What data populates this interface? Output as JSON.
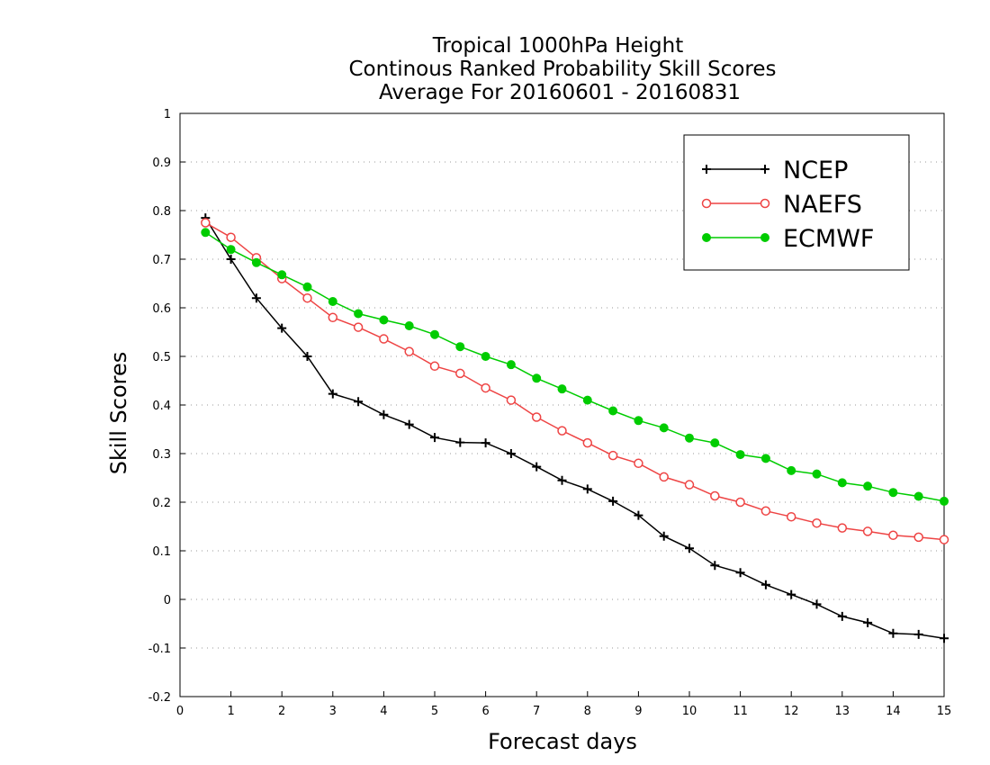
{
  "chart_data": {
    "type": "line",
    "title": [
      "Tropical 1000hPa Height",
      "Continous Ranked Probability Skill Scores",
      "Average For 20160601 - 20160831"
    ],
    "xlabel": "Forecast days",
    "ylabel": "Skill Scores",
    "xlim": [
      0,
      15
    ],
    "ylim": [
      -0.2,
      1
    ],
    "xticks": [
      0,
      1,
      2,
      3,
      4,
      5,
      6,
      7,
      8,
      9,
      10,
      11,
      12,
      13,
      14,
      15
    ],
    "xtick_labels": [
      "0",
      "1",
      "2",
      "3",
      "4",
      "5",
      "6",
      "7",
      "8",
      "9",
      "10",
      "11",
      "12",
      "13",
      "14",
      "15"
    ],
    "yticks": [
      -0.2,
      -0.1,
      0,
      0.1,
      0.2,
      0.3,
      0.4,
      0.5,
      0.6,
      0.7,
      0.8,
      0.9,
      1
    ],
    "ytick_labels": [
      "-0.2",
      "-0.1",
      "0",
      "0.1",
      "0.2",
      "0.3",
      "0.4",
      "0.5",
      "0.6",
      "0.7",
      "0.8",
      "0.9",
      "1"
    ],
    "grid": "horizontal dotted",
    "legend_position": "top-right",
    "x": [
      0.5,
      1,
      1.5,
      2,
      2.5,
      3,
      3.5,
      4,
      4.5,
      5,
      5.5,
      6,
      6.5,
      7,
      7.5,
      8,
      8.5,
      9,
      9.5,
      10,
      10.5,
      11,
      11.5,
      12,
      12.5,
      13,
      13.5,
      14,
      14.5,
      15
    ],
    "series": [
      {
        "name": "NCEP",
        "color": "#000000",
        "marker": "plus",
        "values": [
          0.785,
          0.7,
          0.62,
          0.558,
          0.5,
          0.423,
          0.407,
          0.38,
          0.36,
          0.333,
          0.323,
          0.322,
          0.3,
          0.273,
          0.245,
          0.227,
          0.202,
          0.173,
          0.13,
          0.105,
          0.07,
          0.055,
          0.03,
          0.01,
          -0.01,
          -0.035,
          -0.048,
          -0.07,
          -0.072,
          -0.08
        ]
      },
      {
        "name": "NAEFS",
        "color": "#ee4444",
        "marker": "open-circle",
        "values": [
          0.775,
          0.745,
          0.703,
          0.66,
          0.62,
          0.58,
          0.56,
          0.536,
          0.51,
          0.48,
          0.465,
          0.435,
          0.41,
          0.375,
          0.347,
          0.322,
          0.296,
          0.28,
          0.252,
          0.236,
          0.213,
          0.2,
          0.182,
          0.17,
          0.157,
          0.147,
          0.14,
          0.132,
          0.128,
          0.123
        ]
      },
      {
        "name": "ECMWF",
        "color": "#00cc00",
        "marker": "filled-circle",
        "values": [
          0.755,
          0.72,
          0.693,
          0.668,
          0.643,
          0.613,
          0.588,
          0.575,
          0.563,
          0.545,
          0.52,
          0.5,
          0.483,
          0.455,
          0.433,
          0.41,
          0.388,
          0.368,
          0.353,
          0.332,
          0.322,
          0.298,
          0.29,
          0.265,
          0.258,
          0.24,
          0.233,
          0.22,
          0.212,
          0.202
        ]
      }
    ]
  }
}
